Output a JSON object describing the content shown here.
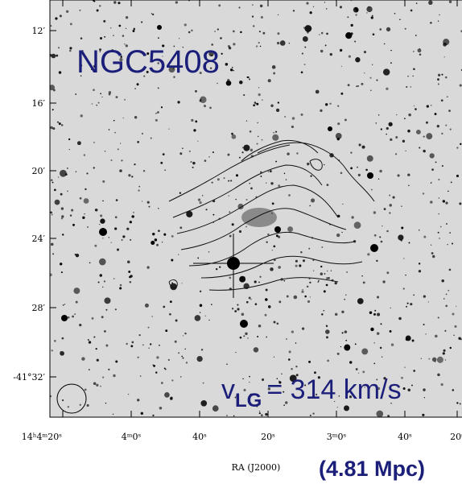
{
  "figure": {
    "object_name": "NGC5408",
    "velocity": {
      "symbol": "v",
      "subscript": "LG",
      "text": "= 314 km/s"
    },
    "distance": "(4.81 Mpc)",
    "x_axis_label": "RA (J2000)",
    "x_tick_labels": [
      "14ʰ4ᵐ20ˢ",
      "4ᵐ0ˢ",
      "40ˢ",
      "20ˢ",
      "3ᵐ0ˢ",
      "40ˢ",
      "20ˢ"
    ],
    "y_tick_labels": [
      "12′",
      "16′",
      "20′",
      "24′",
      "28′",
      "-41°32′"
    ]
  }
}
